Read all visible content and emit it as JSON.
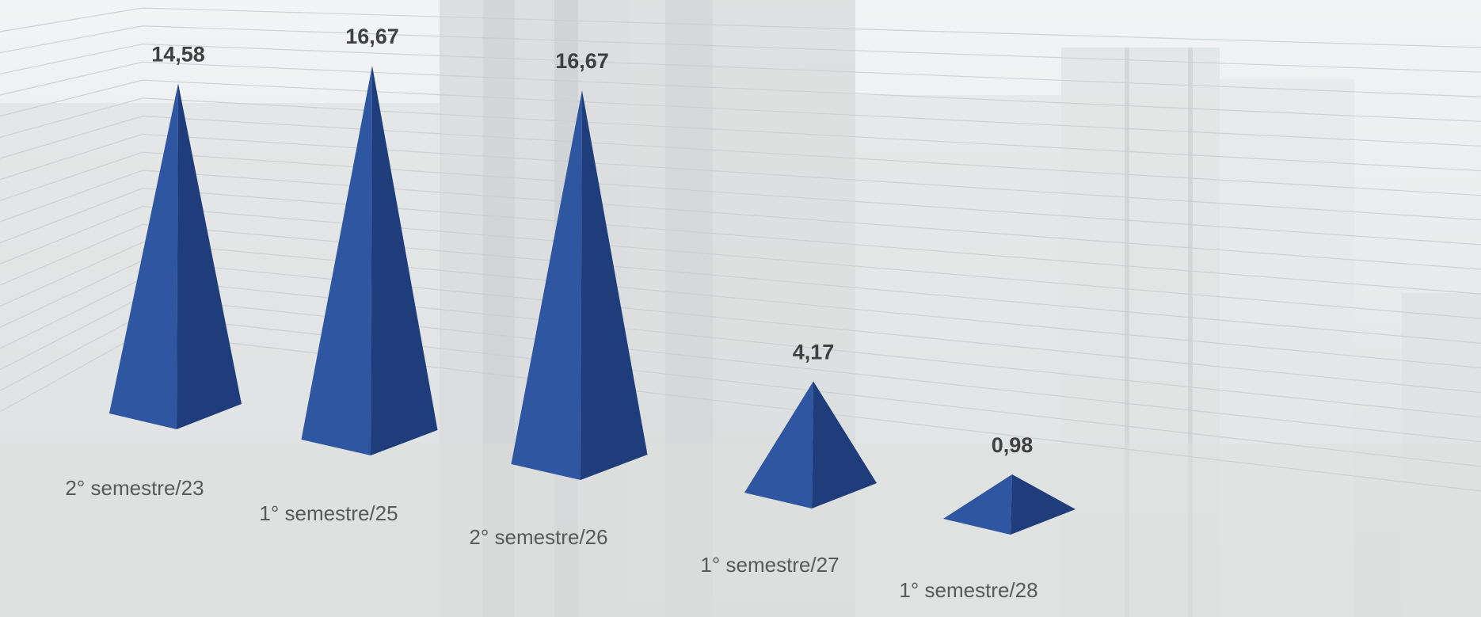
{
  "chart_data": {
    "type": "bar",
    "shape": "pyramid",
    "style": "3d-perspective",
    "title": "",
    "xlabel": "",
    "ylabel": "",
    "categories": [
      "2° semestre/23",
      "1° semestre/25",
      "2° semestre/26",
      "1° semestre/27",
      "1° semestre/28"
    ],
    "values": [
      14.58,
      16.67,
      16.67,
      4.17,
      0.98
    ],
    "value_labels": [
      "14,58",
      "16,67",
      "16,67",
      "4,17",
      "0,98"
    ],
    "ylim": [
      0,
      18
    ],
    "grid": true,
    "legend": "none",
    "colors": {
      "bar": "#2f56a0",
      "bar_light": "#3f68b5",
      "bar_dark": "#1f3d7a",
      "grid": "#c9ccd0"
    }
  }
}
